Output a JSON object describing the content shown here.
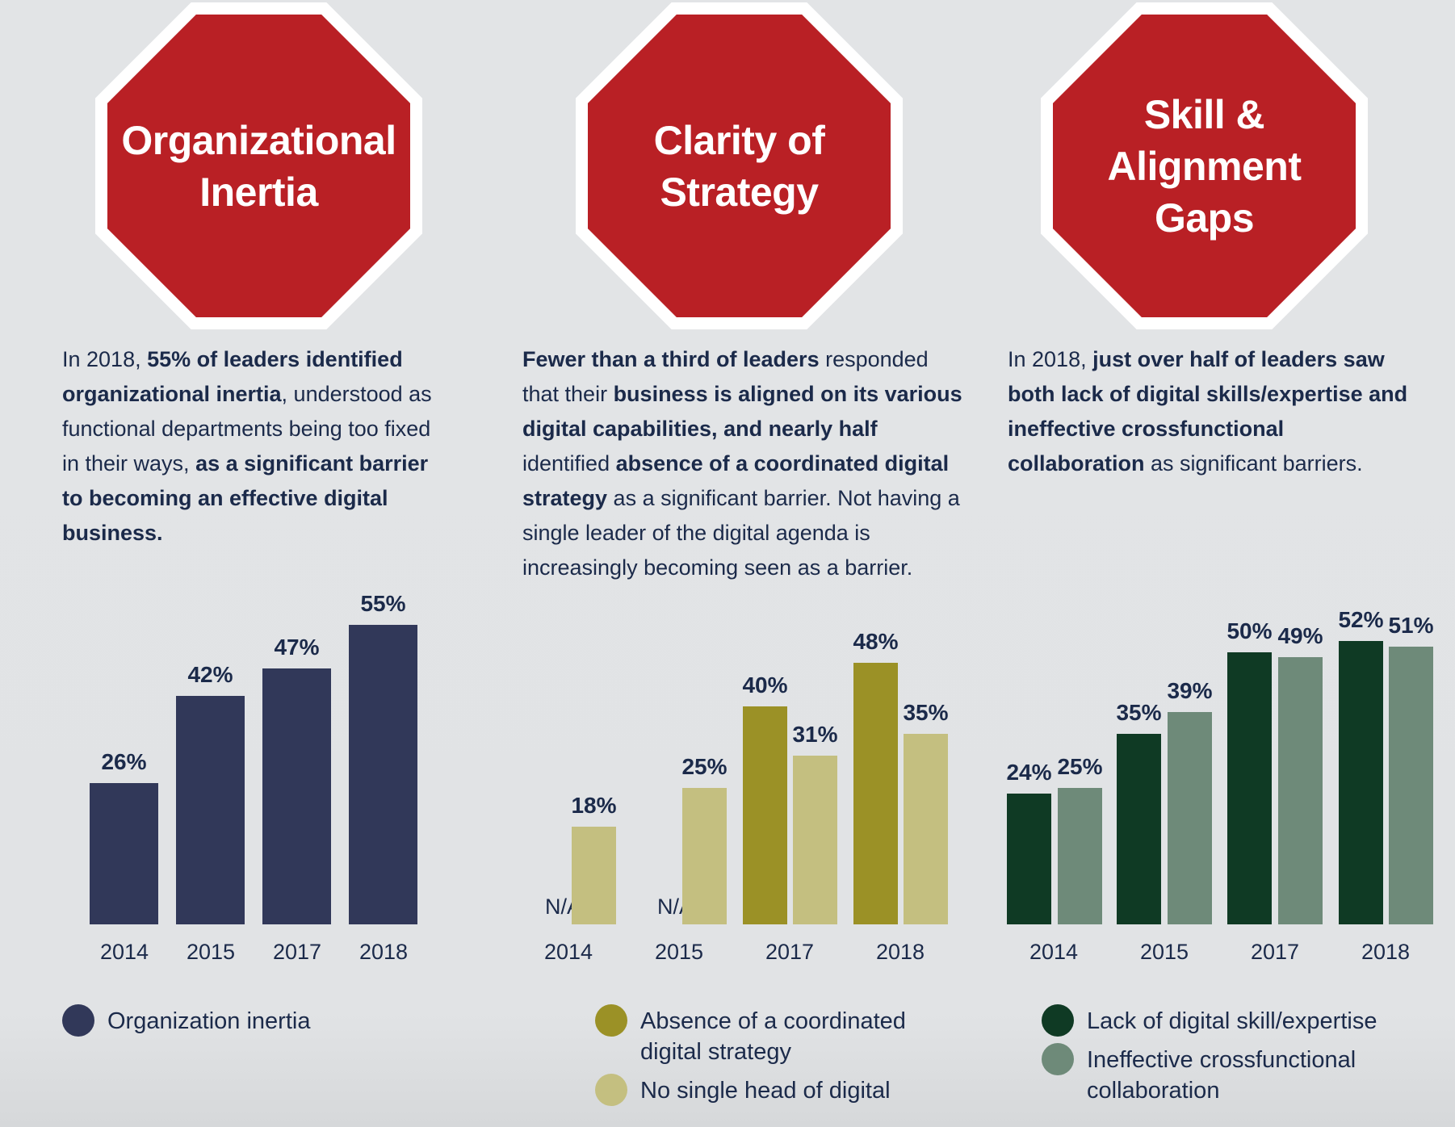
{
  "colors": {
    "red": "#b92025",
    "navy": "#313859",
    "olive": "#9b9126",
    "light_olive": "#c4bf80",
    "dark_green": "#0f3a24",
    "grey_green": "#6e8a79"
  },
  "panels": [
    {
      "title": "Organizational\nInertia",
      "description": [
        {
          "text": "In 2018, ",
          "bold": false
        },
        {
          "text": "55% of leaders identified organizational inertia",
          "bold": true
        },
        {
          "text": ", understood as functional departments being too fixed in their ways, ",
          "bold": false
        },
        {
          "text": "as a significant barrier to becoming an effective digital business.",
          "bold": true
        }
      ]
    },
    {
      "title": "Clarity of\nStrategy",
      "description": [
        {
          "text": "Fewer than a third of leaders",
          "bold": true
        },
        {
          "text": " responded that their ",
          "bold": false
        },
        {
          "text": "business is aligned on its various digital capabilities, and nearly half",
          "bold": true
        },
        {
          "text": " identified ",
          "bold": false
        },
        {
          "text": "absence of a coordinated digital strategy",
          "bold": true
        },
        {
          "text": " as a significant barrier. Not having a single leader of the digital agenda is increasingly becoming seen as a barrier.",
          "bold": false
        }
      ]
    },
    {
      "title": "Skill &\nAlignment\nGaps",
      "description": [
        {
          "text": "In 2018, ",
          "bold": false
        },
        {
          "text": "just over half of leaders saw both lack of digital skills/expertise and ineffective crossfunctional collaboration",
          "bold": true
        },
        {
          "text": " as significant barriers.",
          "bold": false
        }
      ]
    }
  ],
  "chart_data": [
    {
      "type": "bar",
      "categories": [
        "2014",
        "2015",
        "2017",
        "2018"
      ],
      "series": [
        {
          "name": "Organization inertia",
          "color": "#313859",
          "values": [
            26,
            42,
            47,
            55
          ],
          "labels": [
            "26%",
            "42%",
            "47%",
            "55%"
          ]
        }
      ],
      "ylim": [
        0,
        60
      ]
    },
    {
      "type": "bar",
      "categories": [
        "2014",
        "2015",
        "2017",
        "2018"
      ],
      "series": [
        {
          "name": "Absence of a coordinated\ndigital strategy",
          "color": "#9b9126",
          "values": [
            null,
            null,
            40,
            48
          ],
          "labels": [
            "N/A",
            "N/A",
            "40%",
            "48%"
          ]
        },
        {
          "name": "No single head of digital",
          "color": "#c4bf80",
          "values": [
            18,
            25,
            31,
            35
          ],
          "labels": [
            "18%",
            "25%",
            "31%",
            "35%"
          ]
        }
      ],
      "ylim": [
        0,
        60
      ]
    },
    {
      "type": "bar",
      "categories": [
        "2014",
        "2015",
        "2017",
        "2018"
      ],
      "series": [
        {
          "name": "Lack of digital skill/expertise",
          "color": "#0f3a24",
          "values": [
            24,
            35,
            50,
            52
          ],
          "labels": [
            "24%",
            "35%",
            "50%",
            "52%"
          ]
        },
        {
          "name": "Ineffective crossfunctional\ncollaboration",
          "color": "#6e8a79",
          "values": [
            25,
            39,
            49,
            51
          ],
          "labels": [
            "25%",
            "39%",
            "49%",
            "51%"
          ]
        }
      ],
      "ylim": [
        0,
        60
      ]
    }
  ]
}
